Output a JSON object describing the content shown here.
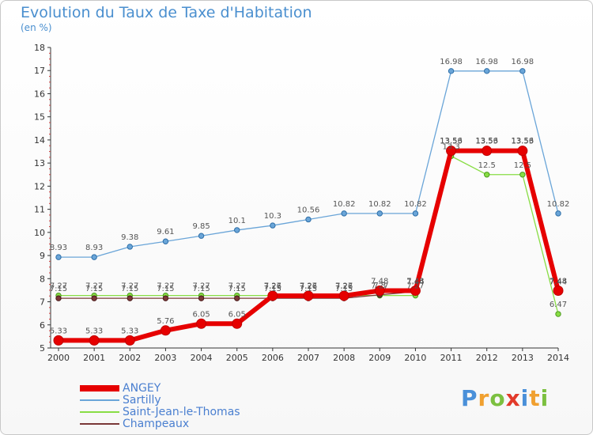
{
  "title": "Evolution du Taux de Taxe d'Habitation",
  "subtitle": "(en %)",
  "logo": {
    "text": "Proxiti",
    "letters": [
      {
        "ch": "P",
        "color": "#4a90d9"
      },
      {
        "ch": "r",
        "color": "#f0a030"
      },
      {
        "ch": "o",
        "color": "#7cc040"
      },
      {
        "ch": "x",
        "color": "#e23a2a"
      },
      {
        "ch": "i",
        "color": "#4a90d9"
      },
      {
        "ch": "t",
        "color": "#f0a030"
      },
      {
        "ch": "i",
        "color": "#7cc040"
      }
    ]
  },
  "chart_data": {
    "type": "line",
    "x": [
      "2000",
      "2001",
      "2002",
      "2003",
      "2004",
      "2005",
      "2006",
      "2007",
      "2008",
      "2009",
      "2010",
      "2011",
      "2012",
      "2013",
      "2014"
    ],
    "ylim": [
      5,
      18
    ],
    "yticks": [
      5,
      6,
      7,
      8,
      9,
      10,
      11,
      12,
      13,
      14,
      15,
      16,
      17,
      18
    ],
    "grid": false,
    "legend": "bottom-left",
    "series": [
      {
        "name": "ANGEY",
        "color": "#e60000",
        "values": [
          5.33,
          5.33,
          5.33,
          5.76,
          6.05,
          6.05,
          7.26,
          7.26,
          7.26,
          7.48,
          7.48,
          13.53,
          13.53,
          13.53,
          7.48
        ],
        "labels": [
          "5.33",
          "5.33",
          "5.33",
          "5.76",
          "6.05",
          "6.05",
          "7.26",
          "7.26",
          "7.26",
          "7.48",
          "7.48",
          "13.53",
          "13.53",
          "13.53",
          "7.48"
        ]
      },
      {
        "name": "Sartilly",
        "color": "#6aa5d8",
        "values": [
          8.93,
          8.93,
          9.38,
          9.61,
          9.85,
          10.1,
          10.3,
          10.56,
          10.82,
          10.82,
          10.82,
          16.98,
          16.98,
          16.98,
          10.82
        ],
        "labels": [
          "8.93",
          "8.93",
          "9.38",
          "9.61",
          "9.85",
          "10.1",
          "10.3",
          "10.56",
          "10.82",
          "10.82",
          "10.82",
          "16.98",
          "16.98",
          "16.98",
          "10.82"
        ]
      },
      {
        "name": "Saint-Jean-le-Thomas",
        "color": "#88dd44",
        "values": [
          7.27,
          7.27,
          7.27,
          7.27,
          7.27,
          7.27,
          7.27,
          7.27,
          7.27,
          7.27,
          7.27,
          13.3,
          12.5,
          12.5,
          6.47
        ],
        "labels": [
          "7.27",
          "7.27",
          "7.27",
          "7.27",
          "7.27",
          "7.27",
          "7.27",
          "7.27",
          "7.27",
          "7.27",
          "7.27",
          "13.3",
          "12.5",
          "12.5",
          "6.47"
        ]
      },
      {
        "name": "Champeaux",
        "color": "#7a3838",
        "values": [
          7.15,
          7.15,
          7.15,
          7.15,
          7.15,
          7.15,
          7.15,
          7.15,
          7.15,
          7.3,
          7.44,
          13.56,
          13.56,
          13.56,
          7.44
        ],
        "labels": [
          "7.15",
          "7.15",
          "7.15",
          "7.15",
          "7.15",
          "7.15",
          "7.15",
          "7.15",
          "7.15",
          "7.3",
          "7.44",
          "13.56",
          "13.56",
          "13.56",
          "7.44"
        ]
      }
    ]
  }
}
